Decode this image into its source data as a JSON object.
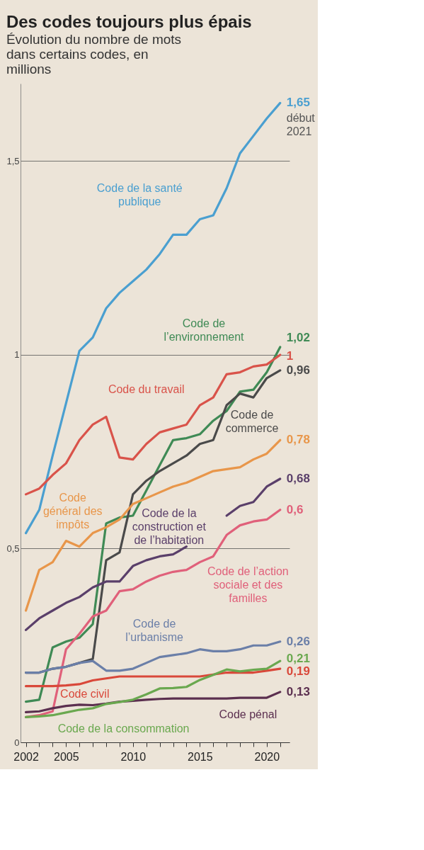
{
  "chart_data": {
    "type": "line",
    "title": "Des codes toujours plus épais",
    "subtitle": "Évolution du nombre de mots dans certains codes, en millions",
    "x": [
      2002,
      2003,
      2004,
      2005,
      2006,
      2007,
      2008,
      2009,
      2010,
      2011,
      2012,
      2013,
      2014,
      2015,
      2016,
      2017,
      2018,
      2019,
      2020,
      2021
    ],
    "xlim": [
      2001.6,
      2021.7
    ],
    "xticks": [
      2002,
      {
        "value": 2003,
        "label": null
      },
      {
        "value": 2004,
        "label": null
      },
      2005,
      {
        "value": 2006,
        "label": null
      },
      {
        "value": 2007,
        "label": null
      },
      {
        "value": 2008,
        "label": null
      },
      {
        "value": 2009,
        "label": null
      },
      2010,
      {
        "value": 2011,
        "label": null
      },
      {
        "value": 2012,
        "label": null
      },
      {
        "value": 2013,
        "label": null
      },
      {
        "value": 2014,
        "label": null
      },
      2015,
      {
        "value": 2016,
        "label": null
      },
      {
        "value": 2017,
        "label": null
      },
      {
        "value": 2018,
        "label": null
      },
      {
        "value": 2019,
        "label": null
      },
      2020,
      {
        "value": 2021,
        "label": null
      }
    ],
    "ylim": [
      0,
      1.7
    ],
    "yticks": [
      0,
      {
        "value": 0.5,
        "label": "0,5"
      },
      1,
      {
        "value": 1.5,
        "label": "1,5"
      }
    ],
    "grid": "y",
    "series": [
      {
        "name": "Code de la santé publique",
        "color": "#4a9fd0",
        "values": [
          0.54,
          0.6,
          0.74,
          0.875,
          1.01,
          1.045,
          1.12,
          1.16,
          1.19,
          1.22,
          1.26,
          1.31,
          1.31,
          1.35,
          1.36,
          1.43,
          1.52,
          1.565,
          1.61,
          1.65
        ],
        "value_labels": [
          null,
          null,
          null,
          null,
          null,
          null,
          null,
          null,
          null,
          null,
          null,
          null,
          null,
          null,
          null,
          null,
          null,
          null,
          null,
          "1,65"
        ]
      },
      {
        "name": "Code de l’environnement",
        "color": "#3f8a55",
        "values": [
          0.105,
          0.11,
          0.245,
          0.26,
          0.27,
          0.305,
          0.565,
          0.58,
          0.585,
          0.65,
          0.715,
          0.78,
          0.785,
          0.795,
          0.83,
          0.855,
          0.905,
          0.91,
          0.955,
          1.02
        ],
        "value_labels": [
          null,
          null,
          null,
          null,
          null,
          null,
          null,
          null,
          null,
          null,
          null,
          null,
          null,
          null,
          null,
          null,
          null,
          null,
          null,
          "1,02"
        ]
      },
      {
        "name": "Code du travail",
        "color": "#d9534a",
        "values": [
          0.64,
          0.655,
          0.69,
          0.72,
          0.78,
          0.82,
          0.84,
          0.735,
          0.73,
          0.77,
          0.8,
          0.81,
          0.82,
          0.87,
          0.89,
          0.95,
          0.955,
          0.97,
          0.975,
          1.0
        ],
        "value_labels": [
          null,
          null,
          null,
          null,
          null,
          null,
          null,
          null,
          null,
          null,
          null,
          null,
          null,
          null,
          null,
          null,
          null,
          null,
          null,
          "1"
        ]
      },
      {
        "name": "Code de commerce",
        "color": "#4a4a4a",
        "values": [
          0.18,
          0.18,
          0.19,
          0.195,
          0.205,
          0.215,
          0.47,
          0.49,
          0.64,
          0.675,
          0.7,
          0.72,
          0.74,
          0.77,
          0.78,
          0.87,
          0.9,
          0.89,
          0.94,
          0.96
        ],
        "value_labels": [
          null,
          null,
          null,
          null,
          null,
          null,
          null,
          null,
          null,
          null,
          null,
          null,
          null,
          null,
          null,
          null,
          null,
          null,
          null,
          "0,96"
        ]
      },
      {
        "name": "Code général des impôts",
        "color": "#e8964a",
        "values": [
          0.34,
          0.445,
          0.465,
          0.52,
          0.505,
          0.54,
          0.555,
          0.575,
          0.615,
          0.63,
          0.645,
          0.66,
          0.67,
          0.685,
          0.7,
          0.705,
          0.71,
          0.73,
          0.745,
          0.78
        ],
        "value_labels": [
          null,
          null,
          null,
          null,
          null,
          null,
          null,
          null,
          null,
          null,
          null,
          null,
          null,
          null,
          null,
          null,
          null,
          null,
          null,
          "0,78"
        ]
      },
      {
        "name": "Code de la construction et de l’habitation",
        "color": "#5a3f6a",
        "values": [
          0.29,
          0.32,
          0.34,
          0.36,
          0.375,
          0.4,
          0.415,
          0.415,
          0.455,
          0.47,
          0.48,
          0.485,
          0.505,
          null,
          null,
          0.585,
          0.61,
          0.62,
          0.66,
          0.68
        ],
        "value_labels": [
          null,
          null,
          null,
          null,
          null,
          null,
          null,
          null,
          null,
          null,
          null,
          null,
          null,
          null,
          null,
          null,
          null,
          null,
          null,
          "0,68"
        ]
      },
      {
        "name": "Code de l’action sociale et des familles",
        "color": "#e0607a",
        "values": [
          0.065,
          0.07,
          0.08,
          0.24,
          0.28,
          0.325,
          0.34,
          0.39,
          0.395,
          0.415,
          0.43,
          0.44,
          0.445,
          0.465,
          0.48,
          0.535,
          0.56,
          0.57,
          0.575,
          0.6
        ],
        "value_labels": [
          null,
          null,
          null,
          null,
          null,
          null,
          null,
          null,
          null,
          null,
          null,
          null,
          null,
          null,
          null,
          null,
          null,
          null,
          null,
          "0,6"
        ]
      },
      {
        "name": "Code de l’urbanisme",
        "color": "#6b7fa8",
        "values": [
          0.18,
          0.18,
          0.19,
          0.195,
          0.205,
          0.21,
          0.185,
          0.185,
          0.19,
          0.205,
          0.22,
          0.225,
          0.23,
          0.24,
          0.235,
          0.235,
          0.24,
          0.25,
          0.25,
          0.26
        ],
        "value_labels": [
          null,
          null,
          null,
          null,
          null,
          null,
          null,
          null,
          null,
          null,
          null,
          null,
          null,
          null,
          null,
          null,
          null,
          null,
          null,
          "0,26"
        ]
      },
      {
        "name": "Code civil",
        "color": "#d9483a",
        "values": [
          0.145,
          0.145,
          0.145,
          0.147,
          0.15,
          0.16,
          0.165,
          0.17,
          0.17,
          0.17,
          0.17,
          0.17,
          0.17,
          0.17,
          0.175,
          0.18,
          0.18,
          0.18,
          0.185,
          0.19
        ],
        "value_labels": [
          null,
          null,
          null,
          null,
          null,
          null,
          null,
          null,
          null,
          null,
          null,
          null,
          null,
          null,
          null,
          null,
          null,
          null,
          null,
          "0,19"
        ]
      },
      {
        "name": "Code pénal",
        "color": "#5b2f4f",
        "values": [
          0.078,
          0.08,
          0.088,
          0.094,
          0.097,
          0.096,
          0.1,
          0.105,
          0.107,
          0.11,
          0.112,
          0.113,
          0.113,
          0.113,
          0.113,
          0.113,
          0.115,
          0.115,
          0.115,
          0.13
        ],
        "value_labels": [
          null,
          null,
          null,
          null,
          null,
          null,
          null,
          null,
          null,
          null,
          null,
          null,
          null,
          null,
          null,
          null,
          null,
          null,
          null,
          "0,13"
        ]
      },
      {
        "name": "Code de la consommation",
        "color": "#6aa84f",
        "values": [
          0.065,
          0.067,
          0.07,
          0.077,
          0.084,
          0.088,
          0.099,
          0.104,
          0.11,
          0.124,
          0.139,
          0.14,
          0.143,
          0.161,
          0.174,
          0.188,
          0.183,
          0.187,
          0.19,
          0.21
        ],
        "value_labels": [
          null,
          null,
          null,
          null,
          null,
          null,
          null,
          null,
          null,
          null,
          null,
          null,
          null,
          null,
          null,
          null,
          null,
          null,
          null,
          "0,21"
        ]
      }
    ],
    "annotations": [
      {
        "text": "début 2021",
        "x": 2021,
        "y": 1.65
      }
    ]
  }
}
